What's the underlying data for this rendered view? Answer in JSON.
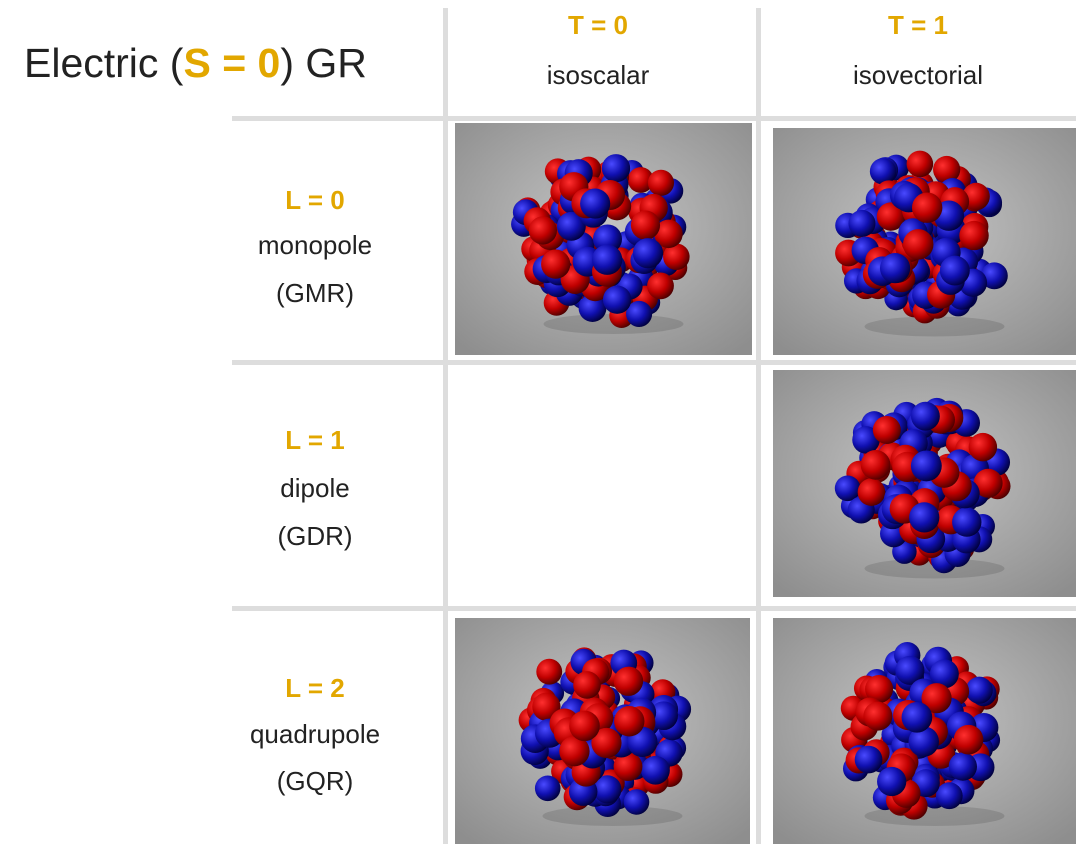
{
  "header": {
    "title": {
      "before": "Electric (",
      "highlight": "S = 0",
      "after": ") GR"
    }
  },
  "columns": [
    {
      "label": "T = 0",
      "name": "isoscalar"
    },
    {
      "label": "T = 1",
      "name": "isovectorial"
    }
  ],
  "rows": [
    {
      "label": "L = 0",
      "name": "monopole",
      "abbr": "(GMR)"
    },
    {
      "label": "L = 1",
      "name": "dipole",
      "abbr": "(GDR)"
    },
    {
      "label": "L = 2",
      "name": "quadrupole",
      "abbr": "(GQR)"
    }
  ]
}
